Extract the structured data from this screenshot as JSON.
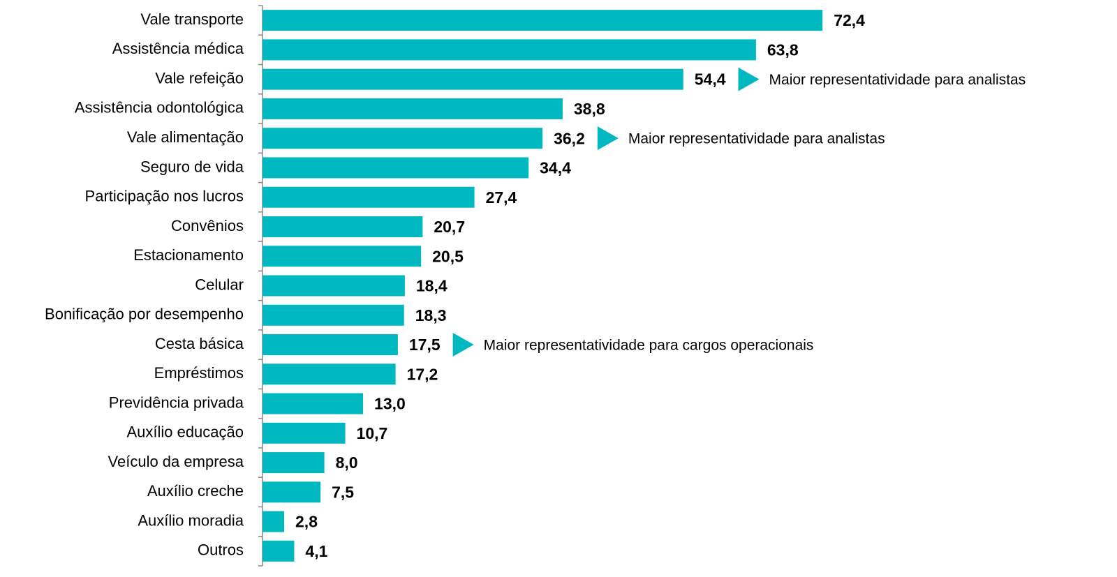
{
  "chart_data": {
    "type": "bar",
    "orientation": "horizontal",
    "color": "#00b9c0",
    "categories": [
      "Vale transporte",
      "Assistência médica",
      "Vale refeição",
      "Assistência odontológica",
      "Vale alimentação",
      "Seguro de vida",
      "Participação nos lucros",
      "Convênios",
      "Estacionamento",
      "Celular",
      "Bonificação por desempenho",
      "Cesta básica",
      "Empréstimos",
      "Previdência privada",
      "Auxílio educação",
      "Veículo da empresa",
      "Auxílio creche",
      "Auxílio moradia",
      "Outros"
    ],
    "values": [
      72.4,
      63.8,
      54.4,
      38.8,
      36.2,
      34.4,
      27.4,
      20.7,
      20.5,
      18.4,
      18.3,
      17.5,
      17.2,
      13.0,
      10.7,
      8.0,
      7.5,
      2.8,
      4.1
    ],
    "value_labels": [
      "72,4",
      "63,8",
      "54,4",
      "38,8",
      "36,2",
      "34,4",
      "27,4",
      "20,7",
      "20,5",
      "18,4",
      "18,3",
      "17,5",
      "17,2",
      "13,0",
      "10,7",
      "8,0",
      "7,5",
      "2,8",
      "4,1"
    ],
    "xlim": [
      0,
      100
    ],
    "annotations": [
      {
        "category": "Vale refeição",
        "text": "Maior representatividade para analistas"
      },
      {
        "category": "Vale alimentação",
        "text": "Maior representatividade para analistas"
      },
      {
        "category": "Cesta básica",
        "text": "Maior representatividade para cargos operacionais"
      }
    ]
  }
}
